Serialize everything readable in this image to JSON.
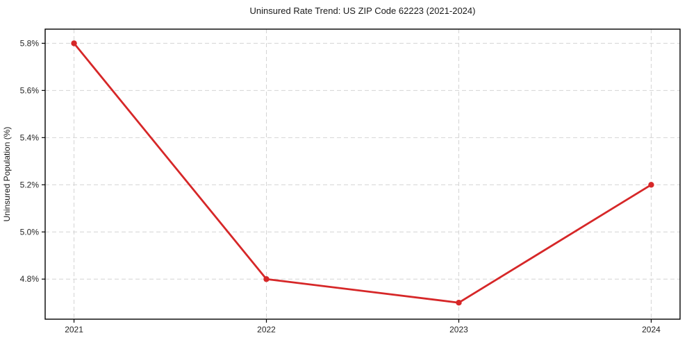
{
  "chart_data": {
    "type": "line",
    "title": "Uninsured Rate Trend: US ZIP Code 62223 (2021-2024)",
    "xlabel": "",
    "ylabel": "Uninsured Population (%)",
    "x": [
      2021,
      2022,
      2023,
      2024
    ],
    "x_tick_labels": [
      "2021",
      "2022",
      "2023",
      "2024"
    ],
    "values": [
      5.8,
      4.8,
      4.7,
      5.2
    ],
    "y_ticks": [
      4.8,
      5.0,
      5.2,
      5.4,
      5.6,
      5.8
    ],
    "y_tick_labels": [
      "4.8%",
      "5.0%",
      "5.2%",
      "5.4%",
      "5.6%",
      "5.8%"
    ],
    "xlim": [
      2020.85,
      2024.15
    ],
    "ylim": [
      4.63,
      5.86
    ],
    "grid": true,
    "grid_style": "dashed",
    "legend_position": "none",
    "line_color": "#d62728",
    "marker_color": "#d62728",
    "grid_color": "#d4d4d4",
    "spine_color": "#000000",
    "background_color": "#ffffff"
  }
}
